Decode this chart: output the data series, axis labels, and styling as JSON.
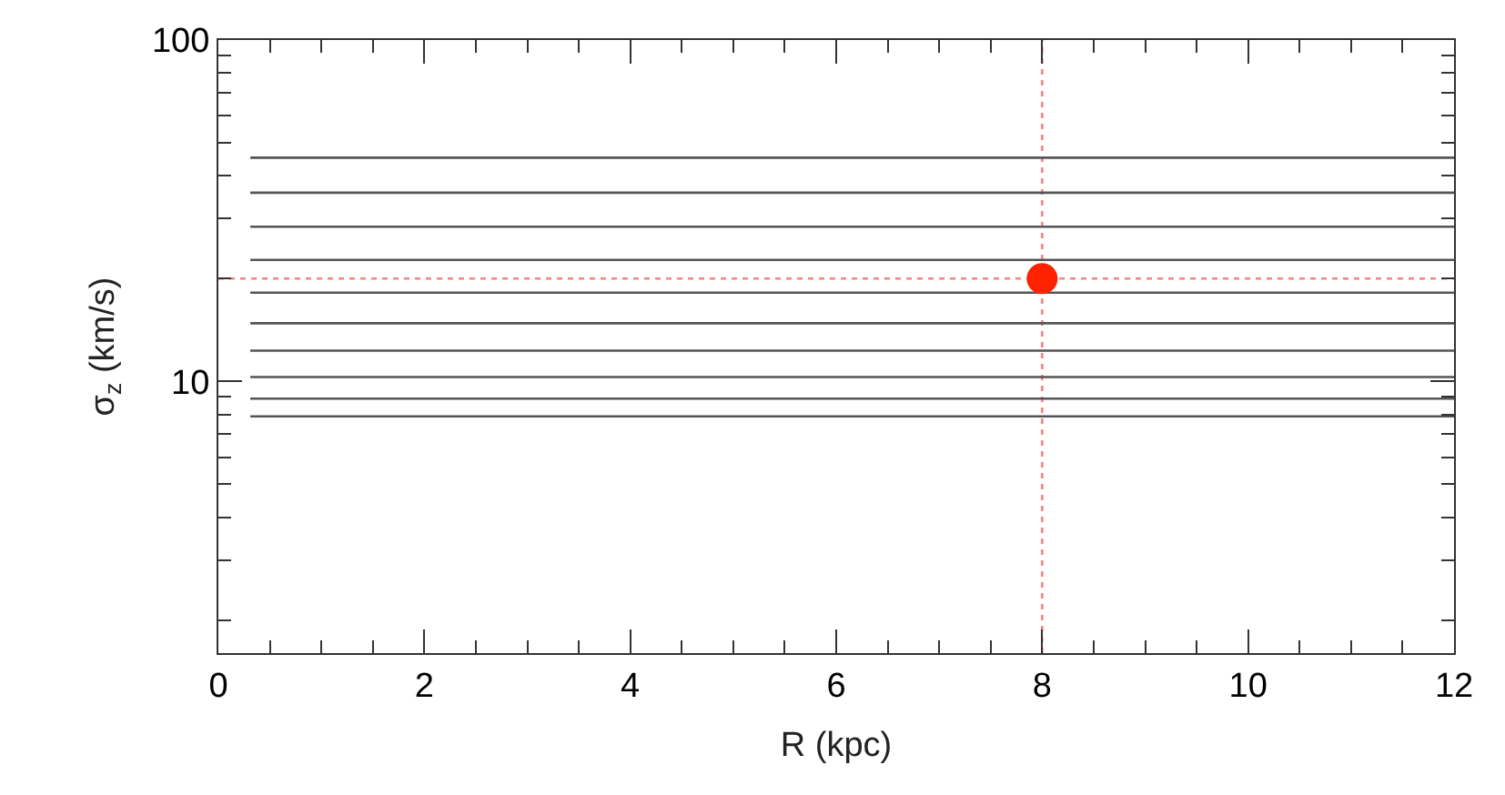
{
  "chart_data": {
    "type": "line",
    "xlabel": "R (kpc)",
    "ylabel": "σ$_{z}$ (km/s)",
    "log": "y",
    "grid": false,
    "marker": "none",
    "line_style": "solid",
    "xlim": [
      0,
      12
    ],
    "ylim": [
      1.6,
      100
    ],
    "xticks": [
      0,
      {
        "value": 0.5,
        "label": null
      },
      {
        "value": 1,
        "label": null
      },
      {
        "value": 1.5,
        "label": null
      },
      2,
      {
        "value": 2.5,
        "label": null
      },
      {
        "value": 3,
        "label": null
      },
      {
        "value": 3.5,
        "label": null
      },
      4,
      {
        "value": 4.5,
        "label": null
      },
      {
        "value": 5,
        "label": null
      },
      {
        "value": 5.5,
        "label": null
      },
      6,
      {
        "value": 6.5,
        "label": null
      },
      {
        "value": 7,
        "label": null
      },
      {
        "value": 7.5,
        "label": null
      },
      8,
      {
        "value": 8.5,
        "label": null
      },
      {
        "value": 9,
        "label": null
      },
      {
        "value": 9.5,
        "label": null
      },
      10,
      {
        "value": 10.5,
        "label": null
      },
      {
        "value": 11,
        "label": null
      },
      {
        "value": 11.5,
        "label": null
      },
      12
    ],
    "yticks": [
      {
        "value": 2,
        "label": null
      },
      {
        "value": 3,
        "label": null
      },
      {
        "value": 4,
        "label": null
      },
      {
        "value": 5,
        "label": null
      },
      {
        "value": 6,
        "label": null
      },
      {
        "value": 7,
        "label": null
      },
      {
        "value": 8,
        "label": null
      },
      {
        "value": 9,
        "label": null
      },
      10,
      {
        "value": 20,
        "label": null
      },
      {
        "value": 30,
        "label": null
      },
      {
        "value": 40,
        "label": null
      },
      {
        "value": 50,
        "label": null
      },
      {
        "value": 60,
        "label": null
      },
      {
        "value": 70,
        "label": null
      },
      {
        "value": 80,
        "label": null
      },
      {
        "value": 90,
        "label": null
      },
      100
    ],
    "x": [
      0.31,
      12
    ],
    "series": [
      {
        "color": "#555555",
        "values": [
          45.2,
          45.2
        ]
      },
      {
        "color": "#555555",
        "values": [
          35.7,
          35.7
        ]
      },
      {
        "color": "#555555",
        "values": [
          28.4,
          28.4
        ]
      },
      {
        "color": "#555555",
        "values": [
          22.7,
          22.7
        ]
      },
      {
        "color": "#555555",
        "values": [
          18.2,
          18.2
        ]
      },
      {
        "color": "#555555",
        "values": [
          14.8,
          14.8
        ]
      },
      {
        "color": "#555555",
        "values": [
          12.3,
          12.3
        ]
      },
      {
        "color": "#555555",
        "values": [
          10.3,
          10.3
        ]
      },
      {
        "color": "#555555",
        "values": [
          8.9,
          8.9
        ]
      },
      {
        "color": "#555555",
        "values": [
          7.9,
          7.9
        ]
      },
      {
        "type": "scatter",
        "marker": "circle",
        "color": "#ff2200",
        "x": [
          8
        ],
        "values": [
          20
        ]
      }
    ],
    "ref_lines": [
      {
        "axis": "x",
        "value": 8,
        "color": "#ff8080",
        "line_style": "dotted"
      },
      {
        "axis": "y",
        "value": 20,
        "color": "#ff8080",
        "line_style": "dotted"
      }
    ]
  }
}
